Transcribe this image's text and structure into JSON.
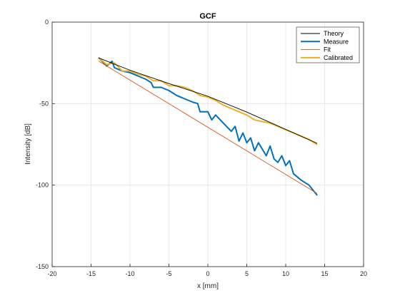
{
  "figure": {
    "background": "#ffffff"
  },
  "chart_data": {
    "type": "line",
    "title": "GCF",
    "xlabel": "x [mm]",
    "ylabel": "Intensity [dB]",
    "xlim": [
      -20,
      20
    ],
    "ylim": [
      -150,
      0
    ],
    "xticks": [
      -20,
      -15,
      -10,
      -5,
      0,
      5,
      10,
      15,
      20
    ],
    "yticks": [
      0,
      -50,
      -100,
      -150
    ],
    "grid": true,
    "legend_position": "top-right",
    "series": [
      {
        "name": "Theory",
        "color": "#000000",
        "style": "solid-thin",
        "x": [
          -14,
          -10,
          -5,
          0,
          5,
          10,
          14
        ],
        "y": [
          -22,
          -29.5,
          -37.7,
          -45.5,
          -55.2,
          -65.8,
          -74.3
        ]
      },
      {
        "name": "Measure",
        "color": "#0072BD",
        "style": "solid-thick",
        "x": [
          -14,
          -13,
          -12.3,
          -12,
          -11,
          -10,
          -9,
          -8,
          -7.3,
          -7,
          -6,
          -5,
          -4,
          -3,
          -2,
          -1.3,
          -1,
          0,
          0.5,
          1,
          2,
          3,
          3.5,
          4,
          4.5,
          5,
          5.5,
          6,
          6.5,
          7,
          7.5,
          8,
          8.5,
          9,
          9.5,
          10,
          10.5,
          11,
          12,
          13,
          14
        ],
        "y": [
          -22,
          -27,
          -24,
          -28,
          -30,
          -31,
          -33,
          -35,
          -37,
          -40,
          -40,
          -42,
          -45,
          -47,
          -49,
          -50,
          -55,
          -55,
          -60,
          -57,
          -62,
          -67,
          -64,
          -73,
          -68,
          -74,
          -71,
          -79,
          -74,
          -78,
          -82,
          -76,
          -84,
          -86,
          -82,
          -88,
          -85,
          -93,
          -97,
          -100,
          -106
        ]
      },
      {
        "name": "Fit",
        "color": "#D95319",
        "style": "solid-thin",
        "x": [
          -14,
          14
        ],
        "y": [
          -24,
          -105
        ]
      },
      {
        "name": "Calibrated",
        "color": "#EDB120",
        "style": "solid-thick",
        "x": [
          -14,
          -13,
          -12,
          -11,
          -10,
          -9,
          -8,
          -7,
          -6,
          -5,
          -4,
          -3,
          -2,
          -1,
          0,
          1,
          2,
          3,
          4,
          5,
          6,
          7,
          8,
          9,
          10,
          11,
          12,
          13,
          14
        ],
        "y": [
          -22,
          -26,
          -25,
          -30,
          -30,
          -32,
          -33,
          -36,
          -36,
          -39,
          -39,
          -40,
          -42,
          -45,
          -46,
          -48,
          -51,
          -53,
          -55,
          -57,
          -60,
          -61,
          -62,
          -64,
          -66,
          -68,
          -70,
          -72,
          -75
        ]
      }
    ]
  }
}
